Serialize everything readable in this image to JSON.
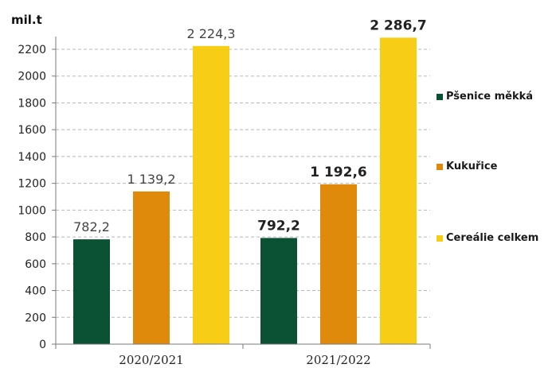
{
  "chart_data": {
    "type": "bar",
    "ylabel": "mil.t",
    "ylim": [
      0,
      2200
    ],
    "yticks": [
      0,
      200,
      400,
      600,
      800,
      1000,
      1200,
      1400,
      1600,
      1800,
      2000,
      2200
    ],
    "categories": [
      "2020/2021",
      "2021/2022"
    ],
    "series": [
      {
        "name": "Pšenice měkká",
        "color": "#0b5234",
        "values": [
          782.2,
          792.2
        ],
        "labels": [
          "782,2",
          "792,2"
        ]
      },
      {
        "name": "Kukuřice",
        "color": "#e08a0b",
        "values": [
          1139.2,
          1192.6
        ],
        "labels": [
          "1 139,2",
          "1 192,6"
        ]
      },
      {
        "name": "Cereálie celkem",
        "color": "#f7cd16",
        "values": [
          2224.3,
          2286.7
        ],
        "labels": [
          "2 224,3",
          "2 286,7"
        ]
      }
    ],
    "bold_labels_category_index": 1,
    "grid": true,
    "legend_position": "right"
  }
}
